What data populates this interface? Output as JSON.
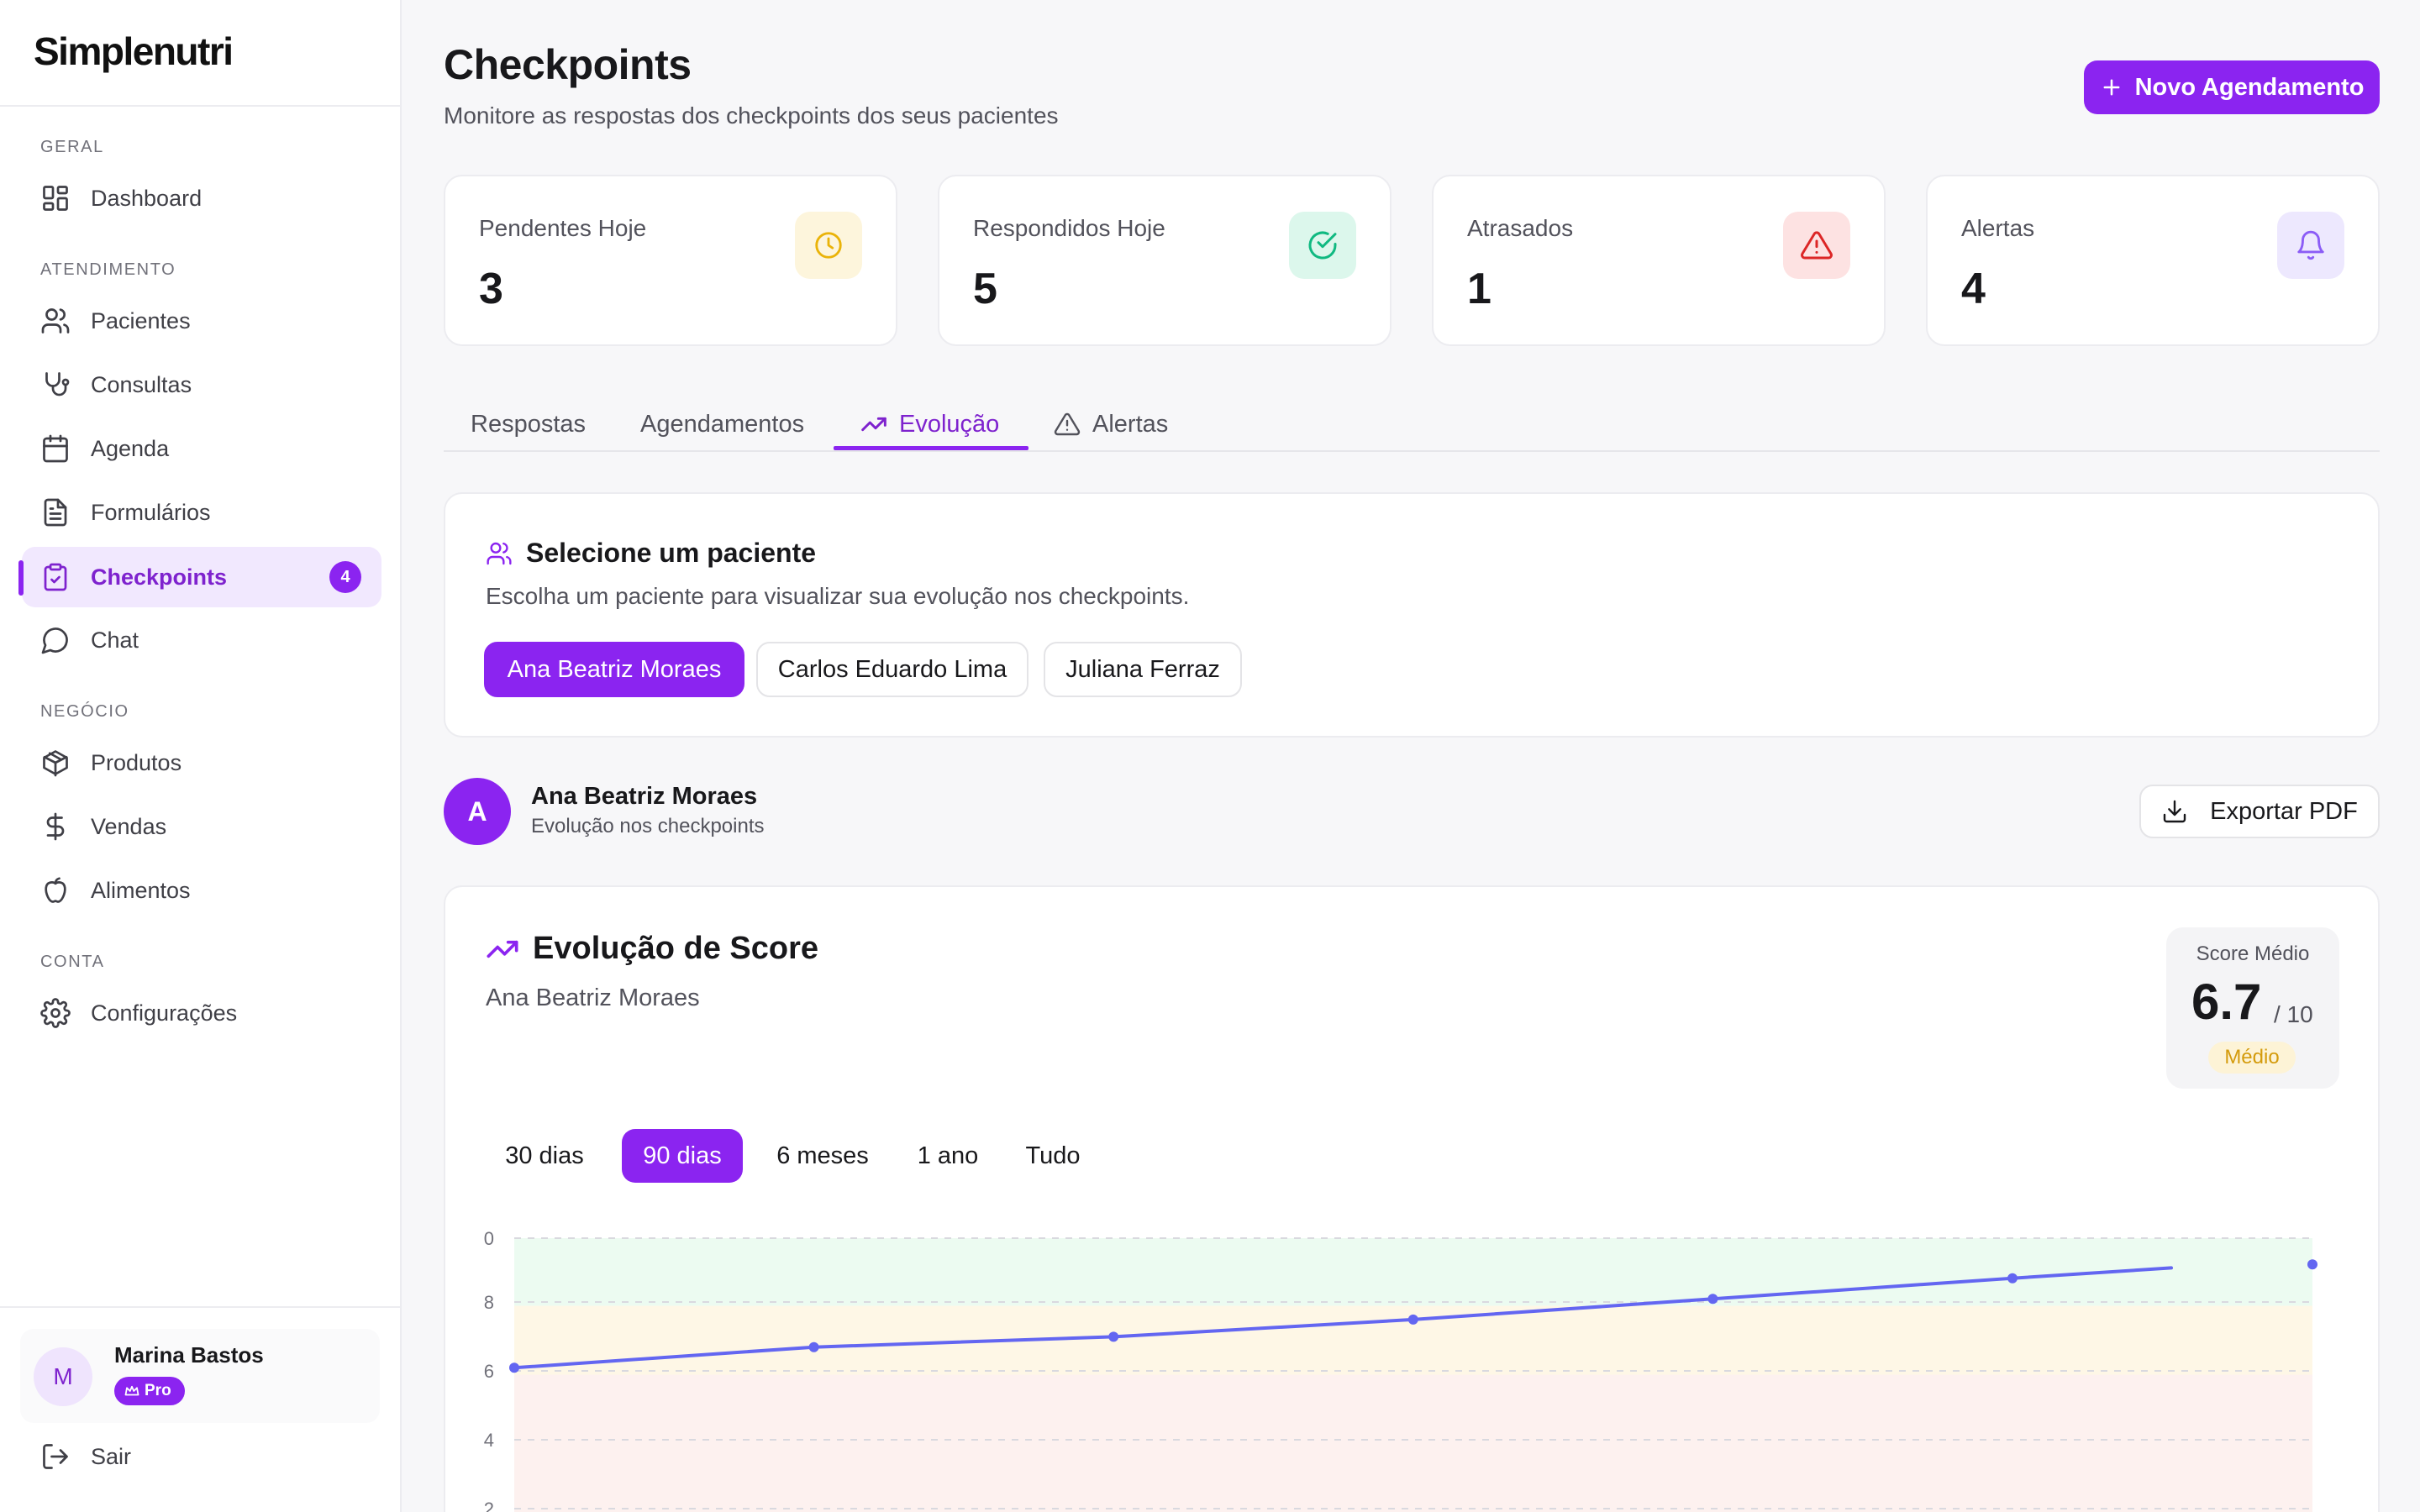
{
  "app": {
    "name": "Simplenutri"
  },
  "sidebar": {
    "sections": [
      {
        "label": "GERAL"
      },
      {
        "label": "ATENDIMENTO"
      },
      {
        "label": "NEGÓCIO"
      },
      {
        "label": "CONTA"
      }
    ],
    "items": [
      {
        "label": "Dashboard",
        "icon": "dashboard-icon"
      },
      {
        "label": "Pacientes",
        "icon": "users-icon"
      },
      {
        "label": "Consultas",
        "icon": "stethoscope-icon"
      },
      {
        "label": "Agenda",
        "icon": "calendar-icon"
      },
      {
        "label": "Formulários",
        "icon": "file-text-icon"
      },
      {
        "label": "Checkpoints",
        "icon": "clipboard-check-icon",
        "badge": "4",
        "active": true
      },
      {
        "label": "Chat",
        "icon": "chat-icon"
      },
      {
        "label": "Produtos",
        "icon": "package-icon"
      },
      {
        "label": "Vendas",
        "icon": "dollar-icon"
      },
      {
        "label": "Alimentos",
        "icon": "apple-icon"
      },
      {
        "label": "Configurações",
        "icon": "gear-icon"
      }
    ],
    "user": {
      "initial": "M",
      "name": "Marina Bastos",
      "plan": "Pro"
    },
    "logout_label": "Sair"
  },
  "header": {
    "title": "Checkpoints",
    "subtitle": "Monitore as respostas dos checkpoints dos seus pacientes",
    "primary_button": "Novo Agendamento"
  },
  "stats": [
    {
      "label": "Pendentes Hoje",
      "value": "3",
      "icon": "clock-icon",
      "color": "#eab308",
      "bg": "#fdf5dc"
    },
    {
      "label": "Respondidos Hoje",
      "value": "5",
      "icon": "check-circle-icon",
      "color": "#10b981",
      "bg": "#dcf7ec"
    },
    {
      "label": "Atrasados",
      "value": "1",
      "icon": "alert-triangle-icon",
      "color": "#dc2626",
      "bg": "#fde2e2"
    },
    {
      "label": "Alertas",
      "value": "4",
      "icon": "bell-icon",
      "color": "#8b5cf6",
      "bg": "#ede8fe"
    }
  ],
  "tabs": [
    {
      "label": "Respostas"
    },
    {
      "label": "Agendamentos"
    },
    {
      "label": "Evolução",
      "icon": "trending-up-icon",
      "active": true
    },
    {
      "label": "Alertas",
      "icon": "alert-triangle-icon"
    }
  ],
  "patient_select": {
    "title": "Selecione um paciente",
    "description": "Escolha um paciente para visualizar sua evolução nos checkpoints.",
    "patients": [
      "Ana Beatriz Moraes",
      "Carlos Eduardo Lima",
      "Juliana Ferraz"
    ],
    "selected": "Ana Beatriz Moraes"
  },
  "patient": {
    "initial": "A",
    "name": "Ana Beatriz Moraes",
    "subtitle": "Evolução nos checkpoints",
    "export_label": "Exportar PDF"
  },
  "evolution": {
    "title": "Evolução de Score",
    "patient_name": "Ana Beatriz Moraes",
    "score": {
      "label": "Score Médio",
      "value": "6.7",
      "max": "/ 10",
      "tag": "Médio"
    },
    "ranges": [
      "30 dias",
      "90 dias",
      "6 meses",
      "1 ano",
      "Tudo"
    ],
    "selected_range": "90 dias"
  },
  "chart_data": {
    "type": "line",
    "y_ticks": [
      "0",
      "8",
      "6",
      "4",
      "2"
    ],
    "ylim": [
      0,
      10
    ],
    "grid": true,
    "bands": [
      {
        "from": 7,
        "to": 10,
        "color": "#ecfbf1"
      },
      {
        "from": 5,
        "to": 7,
        "color": "#fef7e6"
      },
      {
        "from": 0,
        "to": 5,
        "color": "#fdf1ef"
      }
    ],
    "line_color": "#6366f1",
    "series": [
      {
        "x": [
          0,
          1,
          2,
          3,
          4,
          5,
          6
        ],
        "values": [
          5.2,
          5.8,
          6.1,
          6.6,
          7.2,
          7.8,
          8.2
        ]
      }
    ]
  }
}
